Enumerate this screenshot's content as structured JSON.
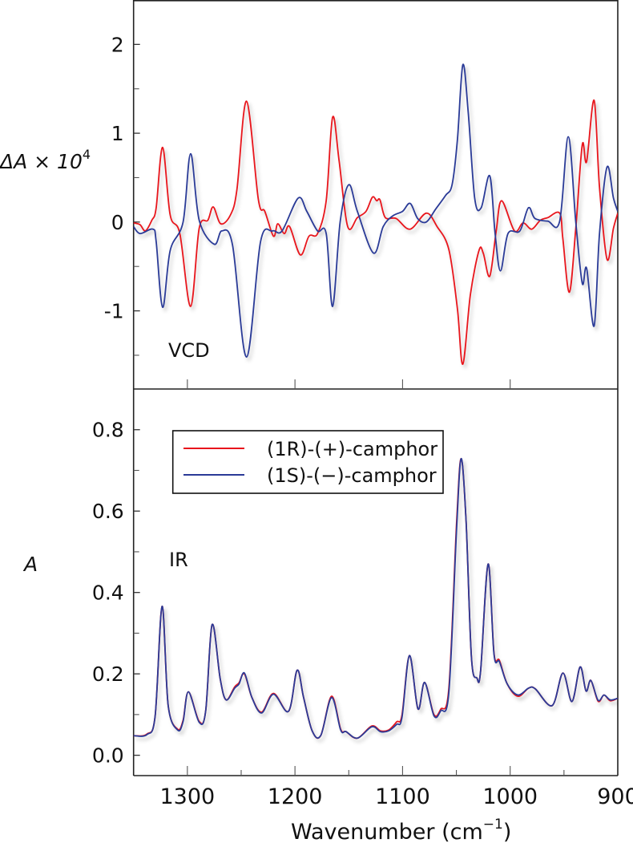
{
  "chart_data": [
    {
      "type": "line",
      "panel_label": "VCD",
      "ylabel_main": "ΔA × 10",
      "ylabel_exp": "4",
      "xlim": [
        1350,
        900
      ],
      "ylim": [
        -1.88,
        2.5
      ],
      "yticks": [
        2,
        1,
        0,
        -1
      ],
      "yticklabels": [
        "2",
        "1",
        "0",
        "-1"
      ],
      "yminor": [
        1.5,
        0.5,
        -0.5,
        -1.5
      ],
      "xticks": [
        1300,
        1200,
        1100,
        1000
      ],
      "series": [
        {
          "name": "(1R)-(+)-camphor",
          "color": "#e8141c",
          "points": [
            [
              1350,
              -0.01
            ],
            [
              1344,
              -0.03
            ],
            [
              1339,
              -0.1
            ],
            [
              1333,
              0.02
            ],
            [
              1329,
              0.16
            ],
            [
              1323,
              0.84
            ],
            [
              1316,
              0.08
            ],
            [
              1307,
              -0.13
            ],
            [
              1297,
              -0.95
            ],
            [
              1289,
              -0.07
            ],
            [
              1281,
              0.02
            ],
            [
              1276,
              0.17
            ],
            [
              1269,
              -0.02
            ],
            [
              1260,
              0.08
            ],
            [
              1254,
              0.36
            ],
            [
              1245,
              1.36
            ],
            [
              1234,
              0.25
            ],
            [
              1228,
              0.12
            ],
            [
              1220,
              -0.16
            ],
            [
              1216,
              -0.02
            ],
            [
              1210,
              -0.13
            ],
            [
              1205,
              -0.05
            ],
            [
              1195,
              -0.37
            ],
            [
              1187,
              -0.16
            ],
            [
              1179,
              -0.13
            ],
            [
              1171,
              0.24
            ],
            [
              1165,
              1.18
            ],
            [
              1159,
              0.69
            ],
            [
              1151,
              -0.05
            ],
            [
              1142,
              0.05
            ],
            [
              1134,
              0.12
            ],
            [
              1128,
              0.28
            ],
            [
              1124,
              0.24
            ],
            [
              1121,
              0.25
            ],
            [
              1116,
              0.05
            ],
            [
              1106,
              0.04
            ],
            [
              1093,
              -0.08
            ],
            [
              1078,
              0.1
            ],
            [
              1068,
              -0.05
            ],
            [
              1057,
              -0.31
            ],
            [
              1049,
              -0.98
            ],
            [
              1044,
              -1.6
            ],
            [
              1037,
              -0.82
            ],
            [
              1029,
              -0.32
            ],
            [
              1025,
              -0.35
            ],
            [
              1019,
              -0.61
            ],
            [
              1013,
              -0.1
            ],
            [
              1008,
              0.24
            ],
            [
              996,
              -0.1
            ],
            [
              988,
              -0.01
            ],
            [
              980,
              -0.08
            ],
            [
              972,
              0.02
            ],
            [
              965,
              0.05
            ],
            [
              954,
              0.1
            ],
            [
              951,
              -0.19
            ],
            [
              945,
              -0.79
            ],
            [
              939,
              -0.07
            ],
            [
              933,
              0.87
            ],
            [
              929,
              0.68
            ],
            [
              922,
              1.37
            ],
            [
              917,
              0.39
            ],
            [
              910,
              -0.42
            ],
            [
              904,
              -0.07
            ],
            [
              900,
              0.1
            ]
          ]
        },
        {
          "name": "(1S)-(−)-camphor",
          "color": "#2b3a97",
          "points": [
            [
              1350,
              -0.05
            ],
            [
              1344,
              -0.13
            ],
            [
              1332,
              -0.08
            ],
            [
              1329,
              -0.22
            ],
            [
              1323,
              -0.96
            ],
            [
              1316,
              -0.32
            ],
            [
              1304,
              0
            ],
            [
              1297,
              0.77
            ],
            [
              1289,
              0.02
            ],
            [
              1275,
              -0.25
            ],
            [
              1268,
              -0.1
            ],
            [
              1258,
              -0.26
            ],
            [
              1245,
              -1.52
            ],
            [
              1232,
              -0.22
            ],
            [
              1221,
              -0.1
            ],
            [
              1212,
              -0.1
            ],
            [
              1197,
              0.27
            ],
            [
              1189,
              0.12
            ],
            [
              1179,
              -0.1
            ],
            [
              1171,
              -0.13
            ],
            [
              1165,
              -0.95
            ],
            [
              1158,
              0
            ],
            [
              1150,
              0.42
            ],
            [
              1142,
              0.12
            ],
            [
              1127,
              -0.35
            ],
            [
              1118,
              -0.05
            ],
            [
              1109,
              0.07
            ],
            [
              1100,
              0.12
            ],
            [
              1093,
              0.21
            ],
            [
              1086,
              0.04
            ],
            [
              1078,
              0
            ],
            [
              1069,
              0.15
            ],
            [
              1060,
              0.3
            ],
            [
              1054,
              0.42
            ],
            [
              1049,
              0.93
            ],
            [
              1044,
              1.77
            ],
            [
              1039,
              1.24
            ],
            [
              1033,
              0.27
            ],
            [
              1027,
              0.16
            ],
            [
              1019,
              0.52
            ],
            [
              1014,
              -0.13
            ],
            [
              1009,
              -0.55
            ],
            [
              1002,
              -0.13
            ],
            [
              991,
              -0.1
            ],
            [
              983,
              0.16
            ],
            [
              977,
              0.04
            ],
            [
              965,
              0.01
            ],
            [
              954,
              0.01
            ],
            [
              946,
              0.96
            ],
            [
              939,
              0
            ],
            [
              933,
              -0.69
            ],
            [
              929,
              -0.52
            ],
            [
              922,
              -1.17
            ],
            [
              917,
              -0.13
            ],
            [
              910,
              0.62
            ],
            [
              904,
              0.27
            ],
            [
              900,
              0.12
            ]
          ]
        }
      ]
    },
    {
      "type": "line",
      "panel_label": "IR",
      "ylabel": "A",
      "xlabel_main": "Wavenumber (cm",
      "xlabel_exp": "−1",
      "xlabel_close": ")",
      "xlim": [
        1350,
        900
      ],
      "ylim": [
        -0.05,
        0.9
      ],
      "yticks": [
        0.8,
        0.6,
        0.4,
        0.2,
        0.0
      ],
      "yticklabels": [
        "0.8",
        "0.6",
        "0.4",
        "0.2",
        "0.0"
      ],
      "yminor": [
        0.7,
        0.5,
        0.3,
        0.1
      ],
      "xticks": [
        1300,
        1200,
        1100,
        1000,
        900
      ],
      "xticklabels": [
        "1300",
        "1200",
        "1100",
        "1000",
        "900"
      ],
      "xminor": [
        1250,
        1150,
        1050,
        950
      ],
      "legend": {
        "position": "top-left",
        "entries": [
          "(1R)-(+)-camphor",
          "(1S)-(−)-camphor"
        ]
      },
      "series": [
        {
          "name": "(1R)-(+)-camphor",
          "color": "#e8141c",
          "points": [
            [
              1350,
              0.048
            ],
            [
              1337.6,
              0.052
            ],
            [
              1330,
              0.096
            ],
            [
              1323.5,
              0.366
            ],
            [
              1317.8,
              0.122
            ],
            [
              1309,
              0.064
            ],
            [
              1304,
              0.086
            ],
            [
              1299,
              0.156
            ],
            [
              1289,
              0.083
            ],
            [
              1283,
              0.109
            ],
            [
              1277,
              0.321
            ],
            [
              1269.5,
              0.188
            ],
            [
              1264,
              0.136
            ],
            [
              1256,
              0.168
            ],
            [
              1252,
              0.178
            ],
            [
              1247,
              0.2
            ],
            [
              1240,
              0.142
            ],
            [
              1231,
              0.106
            ],
            [
              1220,
              0.152
            ],
            [
              1206,
              0.108
            ],
            [
              1198,
              0.209
            ],
            [
              1192,
              0.142
            ],
            [
              1184,
              0.06
            ],
            [
              1176,
              0.049
            ],
            [
              1166,
              0.145
            ],
            [
              1157.5,
              0.064
            ],
            [
              1152.5,
              0.058
            ],
            [
              1142,
              0.042
            ],
            [
              1128.6,
              0.072
            ],
            [
              1120.4,
              0.06
            ],
            [
              1113,
              0.062
            ],
            [
              1105.5,
              0.082
            ],
            [
              1100.6,
              0.098
            ],
            [
              1093.6,
              0.245
            ],
            [
              1085.7,
              0.114
            ],
            [
              1079.5,
              0.179
            ],
            [
              1070.8,
              0.1
            ],
            [
              1064.6,
              0.113
            ],
            [
              1057,
              0.165
            ],
            [
              1049.8,
              0.57
            ],
            [
              1045.6,
              0.729
            ],
            [
              1041,
              0.575
            ],
            [
              1036,
              0.24
            ],
            [
              1031,
              0.19
            ],
            [
              1027.5,
              0.207
            ],
            [
              1020.5,
              0.47
            ],
            [
              1015,
              0.25
            ],
            [
              1010,
              0.233
            ],
            [
              1002.7,
              0.175
            ],
            [
              992.8,
              0.145
            ],
            [
              982.8,
              0.165
            ],
            [
              976.6,
              0.163
            ],
            [
              961,
              0.122
            ],
            [
              951,
              0.202
            ],
            [
              942.6,
              0.132
            ],
            [
              935,
              0.217
            ],
            [
              929.5,
              0.158
            ],
            [
              925,
              0.184
            ],
            [
              918.3,
              0.133
            ],
            [
              912.8,
              0.148
            ],
            [
              907,
              0.134
            ],
            [
              900,
              0.14
            ]
          ]
        },
        {
          "name": "(1S)-(−)-camphor",
          "color": "#2b3a97",
          "points": [
            [
              1350,
              0.048
            ],
            [
              1337.6,
              0.051
            ],
            [
              1330,
              0.096
            ],
            [
              1323.5,
              0.366
            ],
            [
              1317.8,
              0.122
            ],
            [
              1309,
              0.062
            ],
            [
              1304,
              0.083
            ],
            [
              1299,
              0.156
            ],
            [
              1289,
              0.081
            ],
            [
              1283,
              0.109
            ],
            [
              1277,
              0.321
            ],
            [
              1269.5,
              0.188
            ],
            [
              1264,
              0.136
            ],
            [
              1256,
              0.165
            ],
            [
              1252,
              0.175
            ],
            [
              1247,
              0.202
            ],
            [
              1240,
              0.142
            ],
            [
              1231,
              0.104
            ],
            [
              1220,
              0.15
            ],
            [
              1206,
              0.108
            ],
            [
              1198,
              0.209
            ],
            [
              1192,
              0.142
            ],
            [
              1184,
              0.06
            ],
            [
              1176,
              0.049
            ],
            [
              1166,
              0.142
            ],
            [
              1157.5,
              0.062
            ],
            [
              1152.5,
              0.058
            ],
            [
              1142,
              0.042
            ],
            [
              1128.6,
              0.07
            ],
            [
              1120.4,
              0.058
            ],
            [
              1113,
              0.06
            ],
            [
              1105.5,
              0.076
            ],
            [
              1100.6,
              0.092
            ],
            [
              1093.6,
              0.245
            ],
            [
              1085.7,
              0.114
            ],
            [
              1079.5,
              0.179
            ],
            [
              1070.8,
              0.097
            ],
            [
              1064.6,
              0.109
            ],
            [
              1057,
              0.155
            ],
            [
              1049.8,
              0.555
            ],
            [
              1045.6,
              0.729
            ],
            [
              1041,
              0.575
            ],
            [
              1036,
              0.24
            ],
            [
              1031,
              0.19
            ],
            [
              1027.5,
              0.207
            ],
            [
              1020.5,
              0.47
            ],
            [
              1015,
              0.247
            ],
            [
              1010,
              0.23
            ],
            [
              1002.7,
              0.175
            ],
            [
              992.8,
              0.148
            ],
            [
              982.8,
              0.165
            ],
            [
              976.6,
              0.163
            ],
            [
              961,
              0.122
            ],
            [
              951,
              0.202
            ],
            [
              942.6,
              0.132
            ],
            [
              935,
              0.217
            ],
            [
              929.5,
              0.158
            ],
            [
              925,
              0.184
            ],
            [
              918.3,
              0.135
            ],
            [
              912.8,
              0.148
            ],
            [
              907,
              0.136
            ],
            [
              900,
              0.14
            ]
          ]
        }
      ]
    }
  ]
}
